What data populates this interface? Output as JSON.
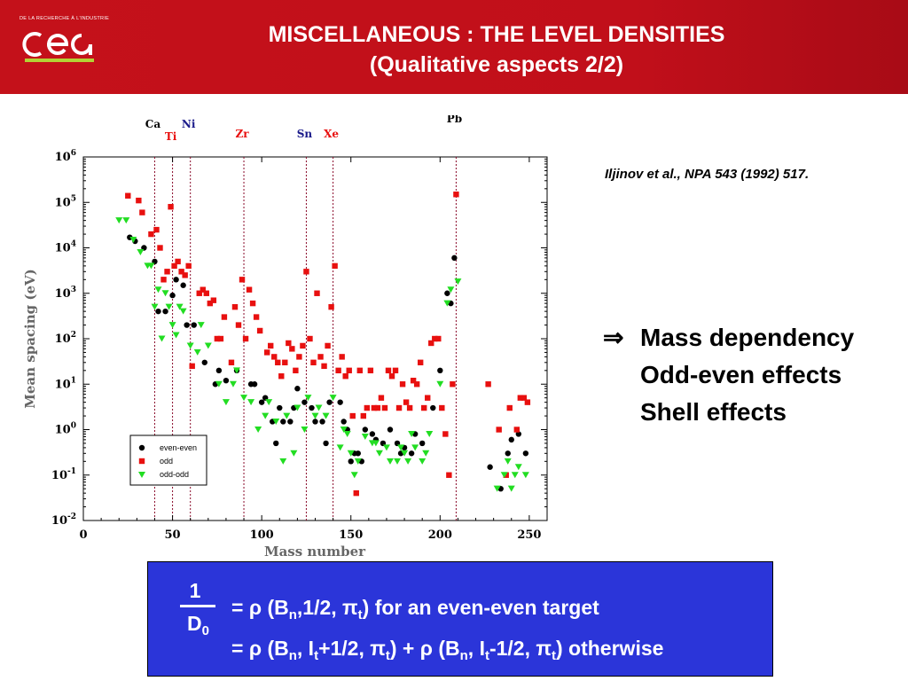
{
  "header": {
    "logo_small_text": "DE LA RECHERCHE À L'INDUSTRIE",
    "logo_text": "cea",
    "title_line1": "MISCELLANEOUS : THE LEVEL DENSITIES",
    "title_line2": "(Qualitative aspects 2/2)"
  },
  "citation": "Iljinov et al., NPA 543 (1992) 517.",
  "points": {
    "arrow": "⇒",
    "items": [
      "Mass dependency",
      "Odd-even effects",
      "Shell effects"
    ]
  },
  "formula": {
    "numerator": "1",
    "denominator": "D",
    "denominator_sub": "0",
    "line1": {
      "a": "= ρ (B",
      "b": "n",
      "c": ",1/2, π",
      "d": "t",
      "e": ") for an even-even target"
    },
    "line2": {
      "a": "= ρ (B",
      "b": "n",
      "c": ", I",
      "d": "t",
      "e": "+1/2, π",
      "f": "t",
      "g": ") + ρ (B",
      "h": "n",
      "i": ", I",
      "j": "t",
      "k": "-1/2, π",
      "l": "t",
      "m": ") otherwise"
    }
  },
  "colors": {
    "header": "#c4111a",
    "formula_box": "#2b35d9",
    "even_even": "#000000",
    "odd": "#e8100f",
    "odd_odd": "#22dd22",
    "shell_line": "#8a0a2a"
  },
  "chart_data": {
    "type": "scatter",
    "xlabel": "Mass number",
    "ylabel": "Mean spacing (eV)",
    "xlim": [
      0,
      260
    ],
    "ylim_log10": [
      -2,
      6
    ],
    "log_y": true,
    "x_ticks": [
      "0",
      "50",
      "100",
      "150",
      "200",
      "250"
    ],
    "y_ticks": [
      {
        "base": "10",
        "exp": "-2"
      },
      {
        "base": "10",
        "exp": "-1"
      },
      {
        "base": "10",
        "exp": "0"
      },
      {
        "base": "10",
        "exp": "1"
      },
      {
        "base": "10",
        "exp": "2"
      },
      {
        "base": "10",
        "exp": "3"
      },
      {
        "base": "10",
        "exp": "4"
      },
      {
        "base": "10",
        "exp": "5"
      },
      {
        "base": "10",
        "exp": "6"
      }
    ],
    "shell_markers": [
      {
        "label": "Ca",
        "x": 40,
        "color": "#000000"
      },
      {
        "label": "Ti",
        "x": 50,
        "color": "#e8100f"
      },
      {
        "label": "Ni",
        "x": 60,
        "color": "#1a1a8a"
      },
      {
        "label": "Zr",
        "x": 90,
        "color": "#e8100f"
      },
      {
        "label": "Sn",
        "x": 125,
        "color": "#1a1a8a"
      },
      {
        "label": "Xe",
        "x": 140,
        "color": "#e8100f"
      },
      {
        "label": "Pb",
        "x": 209,
        "color": "#000000"
      }
    ],
    "legend": {
      "position": "bottom-left",
      "entries": [
        "even-even",
        "odd",
        "odd-odd"
      ]
    },
    "series": [
      {
        "name": "even-even",
        "marker": "circle",
        "points": [
          [
            26,
            17000
          ],
          [
            29,
            14000
          ],
          [
            34,
            10000
          ],
          [
            40,
            5000
          ],
          [
            42,
            400
          ],
          [
            46,
            400
          ],
          [
            50,
            900
          ],
          [
            52,
            2000
          ],
          [
            56,
            1500
          ],
          [
            58,
            200
          ],
          [
            62,
            200
          ],
          [
            68,
            30
          ],
          [
            74,
            10
          ],
          [
            76,
            20
          ],
          [
            80,
            12
          ],
          [
            86,
            20
          ],
          [
            94,
            10
          ],
          [
            96,
            10
          ],
          [
            100,
            4
          ],
          [
            102,
            5
          ],
          [
            106,
            1.5
          ],
          [
            108,
            0.5
          ],
          [
            110,
            3
          ],
          [
            112,
            1.5
          ],
          [
            116,
            1.5
          ],
          [
            118,
            3
          ],
          [
            120,
            8
          ],
          [
            124,
            4
          ],
          [
            128,
            3
          ],
          [
            130,
            1.5
          ],
          [
            134,
            1.5
          ],
          [
            136,
            0.5
          ],
          [
            138,
            4
          ],
          [
            144,
            4
          ],
          [
            146,
            1.5
          ],
          [
            148,
            1
          ],
          [
            150,
            0.2
          ],
          [
            152,
            0.3
          ],
          [
            154,
            0.3
          ],
          [
            156,
            0.2
          ],
          [
            158,
            1
          ],
          [
            162,
            0.8
          ],
          [
            164,
            0.6
          ],
          [
            168,
            0.5
          ],
          [
            172,
            1
          ],
          [
            176,
            0.5
          ],
          [
            178,
            0.3
          ],
          [
            180,
            0.4
          ],
          [
            184,
            0.3
          ],
          [
            186,
            0.8
          ],
          [
            190,
            0.5
          ],
          [
            196,
            3
          ],
          [
            200,
            20
          ],
          [
            204,
            1000
          ],
          [
            206,
            600
          ],
          [
            208,
            6000
          ],
          [
            228,
            0.15
          ],
          [
            234,
            0.05
          ],
          [
            238,
            0.3
          ],
          [
            240,
            0.6
          ],
          [
            244,
            0.8
          ],
          [
            248,
            0.3
          ]
        ]
      },
      {
        "name": "odd",
        "marker": "square",
        "points": [
          [
            25,
            140000
          ],
          [
            31,
            110000
          ],
          [
            33,
            60000
          ],
          [
            38,
            20000
          ],
          [
            41,
            25000
          ],
          [
            43,
            10000
          ],
          [
            45,
            2000
          ],
          [
            47,
            3000
          ],
          [
            49,
            80000
          ],
          [
            51,
            4000
          ],
          [
            53,
            5000
          ],
          [
            55,
            3000
          ],
          [
            57,
            2500
          ],
          [
            59,
            4000
          ],
          [
            61,
            25
          ],
          [
            65,
            1000
          ],
          [
            67,
            1200
          ],
          [
            69,
            1000
          ],
          [
            71,
            600
          ],
          [
            73,
            700
          ],
          [
            75,
            100
          ],
          [
            77,
            100
          ],
          [
            79,
            300
          ],
          [
            83,
            30
          ],
          [
            85,
            500
          ],
          [
            87,
            200
          ],
          [
            89,
            2000
          ],
          [
            91,
            100
          ],
          [
            93,
            1200
          ],
          [
            95,
            600
          ],
          [
            97,
            300
          ],
          [
            99,
            150
          ],
          [
            103,
            50
          ],
          [
            105,
            70
          ],
          [
            107,
            40
          ],
          [
            109,
            30
          ],
          [
            111,
            15
          ],
          [
            113,
            30
          ],
          [
            115,
            80
          ],
          [
            117,
            60
          ],
          [
            119,
            20
          ],
          [
            121,
            40
          ],
          [
            123,
            70
          ],
          [
            125,
            3000
          ],
          [
            127,
            100
          ],
          [
            129,
            30
          ],
          [
            131,
            1000
          ],
          [
            133,
            40
          ],
          [
            135,
            25
          ],
          [
            137,
            70
          ],
          [
            139,
            500
          ],
          [
            141,
            4000
          ],
          [
            143,
            20
          ],
          [
            145,
            40
          ],
          [
            147,
            15
          ],
          [
            149,
            20
          ],
          [
            151,
            2
          ],
          [
            153,
            0.04
          ],
          [
            155,
            20
          ],
          [
            157,
            2
          ],
          [
            159,
            3
          ],
          [
            161,
            20
          ],
          [
            163,
            3
          ],
          [
            165,
            3
          ],
          [
            167,
            5
          ],
          [
            169,
            3
          ],
          [
            171,
            20
          ],
          [
            173,
            15
          ],
          [
            175,
            20
          ],
          [
            177,
            3
          ],
          [
            179,
            10
          ],
          [
            181,
            4
          ],
          [
            183,
            3
          ],
          [
            185,
            12
          ],
          [
            187,
            10
          ],
          [
            189,
            30
          ],
          [
            191,
            3
          ],
          [
            193,
            5
          ],
          [
            195,
            80
          ],
          [
            197,
            100
          ],
          [
            199,
            100
          ],
          [
            201,
            3
          ],
          [
            203,
            0.8
          ],
          [
            205,
            0.1
          ],
          [
            207,
            10
          ],
          [
            209,
            150000
          ],
          [
            227,
            10
          ],
          [
            233,
            1
          ],
          [
            237,
            0.1
          ],
          [
            239,
            3
          ],
          [
            243,
            1
          ],
          [
            245,
            5
          ],
          [
            247,
            5
          ],
          [
            249,
            4
          ]
        ]
      },
      {
        "name": "odd-odd",
        "marker": "triangle",
        "points": [
          [
            20,
            40000
          ],
          [
            24,
            40000
          ],
          [
            28,
            15000
          ],
          [
            32,
            8000
          ],
          [
            36,
            4000
          ],
          [
            38,
            4000
          ],
          [
            40,
            500
          ],
          [
            42,
            1200
          ],
          [
            44,
            100
          ],
          [
            46,
            1000
          ],
          [
            48,
            500
          ],
          [
            50,
            200
          ],
          [
            52,
            120
          ],
          [
            54,
            500
          ],
          [
            56,
            400
          ],
          [
            60,
            70
          ],
          [
            64,
            50
          ],
          [
            66,
            200
          ],
          [
            70,
            70
          ],
          [
            76,
            10
          ],
          [
            80,
            4
          ],
          [
            84,
            10
          ],
          [
            86,
            20
          ],
          [
            90,
            5
          ],
          [
            94,
            4
          ],
          [
            98,
            1
          ],
          [
            102,
            2
          ],
          [
            104,
            4
          ],
          [
            108,
            1.5
          ],
          [
            112,
            0.2
          ],
          [
            114,
            2
          ],
          [
            118,
            0.3
          ],
          [
            120,
            3
          ],
          [
            124,
            1
          ],
          [
            126,
            5
          ],
          [
            130,
            2
          ],
          [
            132,
            3
          ],
          [
            136,
            2
          ],
          [
            140,
            5
          ],
          [
            144,
            0.4
          ],
          [
            146,
            1
          ],
          [
            148,
            0.8
          ],
          [
            150,
            0.3
          ],
          [
            152,
            0.1
          ],
          [
            154,
            0.2
          ],
          [
            158,
            0.7
          ],
          [
            162,
            0.5
          ],
          [
            164,
            0.5
          ],
          [
            166,
            0.3
          ],
          [
            170,
            0.4
          ],
          [
            172,
            0.2
          ],
          [
            176,
            0.2
          ],
          [
            178,
            0.4
          ],
          [
            180,
            0.3
          ],
          [
            182,
            0.2
          ],
          [
            184,
            0.8
          ],
          [
            186,
            0.4
          ],
          [
            190,
            0.2
          ],
          [
            192,
            0.3
          ],
          [
            194,
            0.8
          ],
          [
            200,
            10
          ],
          [
            204,
            600
          ],
          [
            206,
            1200
          ],
          [
            210,
            1800
          ],
          [
            232,
            0.05
          ],
          [
            236,
            0.1
          ],
          [
            238,
            0.2
          ],
          [
            240,
            0.05
          ],
          [
            242,
            0.1
          ],
          [
            244,
            0.15
          ],
          [
            248,
            0.1
          ]
        ]
      }
    ]
  }
}
